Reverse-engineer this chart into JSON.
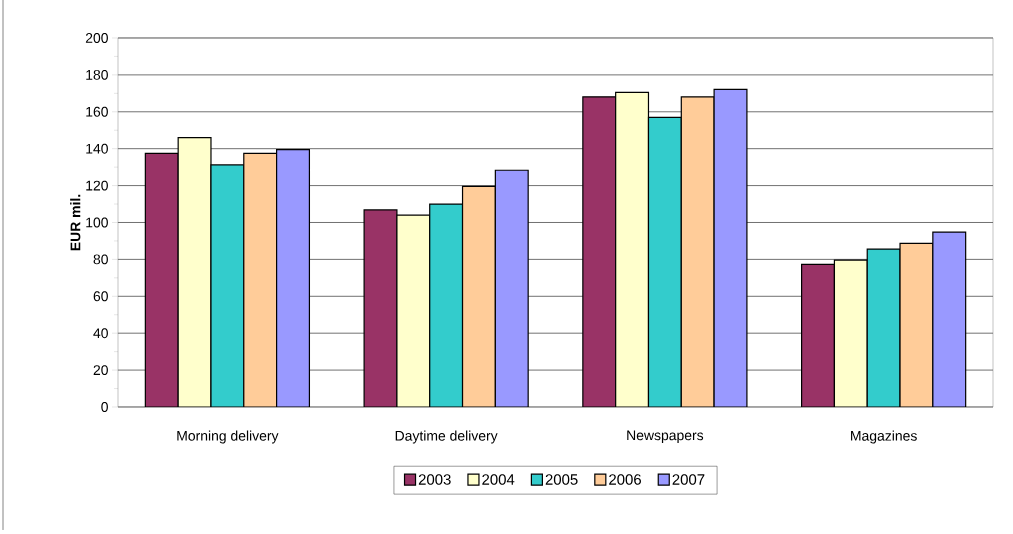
{
  "chart_data": {
    "type": "bar",
    "ylabel": "EUR mil.",
    "categories": [
      "Morning delivery",
      "Daytime delivery",
      "Newspapers",
      "Magazines"
    ],
    "series": [
      {
        "name": "2003",
        "color": "#993366",
        "values": [
          137.5,
          106.8,
          168.1,
          77.3
        ]
      },
      {
        "name": "2004",
        "color": "#ffffcc",
        "values": [
          146,
          104,
          170.5,
          79.6
        ]
      },
      {
        "name": "2005",
        "color": "#33cccc",
        "values": [
          131.2,
          110,
          157,
          85.6
        ]
      },
      {
        "name": "2006",
        "color": "#ffcc99",
        "values": [
          137.5,
          119.6,
          168.1,
          88.7
        ]
      },
      {
        "name": "2007",
        "color": "#9999ff",
        "values": [
          139.5,
          128.3,
          172.1,
          94.8
        ]
      }
    ],
    "ylim": [
      0,
      200
    ],
    "yticks": [
      0,
      20,
      40,
      60,
      80,
      100,
      120,
      140,
      160,
      180,
      200
    ],
    "grid": "y",
    "legend": "bottom"
  }
}
